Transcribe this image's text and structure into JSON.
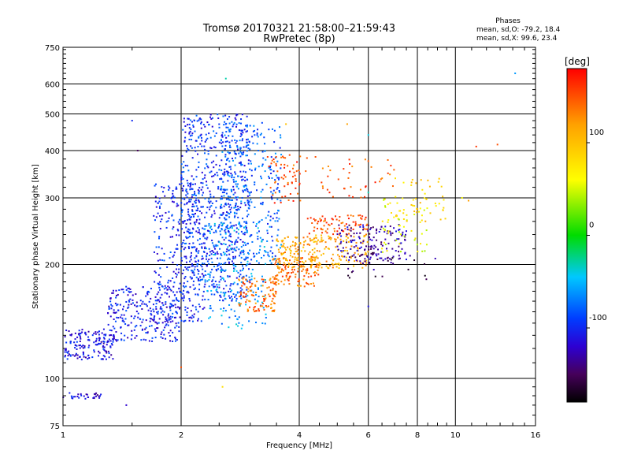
{
  "chart_data": {
    "type": "scatter",
    "title": "Tromsø 20170321 21:58:00–21:59:43",
    "subtitle": "RwPretec (8p)",
    "xlabel": "Frequency [MHz]",
    "ylabel": "Stationary phase Virtual Height [km]",
    "x_scale": "log",
    "y_scale": "log",
    "xlim": [
      1,
      16
    ],
    "ylim": [
      75,
      750
    ],
    "x_ticks": [
      1,
      2,
      4,
      6,
      8,
      10,
      16
    ],
    "y_ticks": [
      75,
      100,
      200,
      300,
      400,
      500,
      600,
      750
    ],
    "grid": true,
    "color_by": "phase",
    "colorbar": {
      "label": "[deg]",
      "ticks": [
        100,
        0,
        -100
      ],
      "range": [
        -180,
        180
      ]
    },
    "stats": {
      "title": "Phases",
      "o_line": "mean, sd,O: -79.2, 18.4",
      "x_line": "mean, sd,X:  99.6, 23.4"
    },
    "clusters": [
      {
        "x": [
          1.0,
          1.25
        ],
        "y": [
          88,
          92
        ],
        "phase": -115,
        "n": 30
      },
      {
        "x": [
          1.01,
          1.35
        ],
        "y": [
          112,
          135
        ],
        "phase": -110,
        "n": 160
      },
      {
        "x": [
          1.3,
          2.0
        ],
        "y": [
          125,
          175
        ],
        "phase": -105,
        "n": 260
      },
      {
        "x": [
          1.7,
          2.3
        ],
        "y": [
          140,
          330
        ],
        "phase": -100,
        "n": 320
      },
      {
        "x": [
          2.0,
          3.0
        ],
        "y": [
          160,
          500
        ],
        "phase": -95,
        "n": 700
      },
      {
        "x": [
          2.5,
          3.6
        ],
        "y": [
          200,
          480
        ],
        "phase": -80,
        "n": 320
      },
      {
        "x": [
          2.3,
          3.3
        ],
        "y": [
          135,
          260
        ],
        "phase": -60,
        "n": 180
      },
      {
        "x": [
          2.8,
          3.5
        ],
        "y": [
          150,
          185
        ],
        "phase": 140,
        "n": 110
      },
      {
        "x": [
          3.4,
          4.5
        ],
        "y": [
          175,
          210
        ],
        "phase": 140,
        "n": 110
      },
      {
        "x": [
          3.5,
          6.0
        ],
        "y": [
          195,
          240
        ],
        "phase": 115,
        "n": 240
      },
      {
        "x": [
          3.3,
          4.2
        ],
        "y": [
          290,
          390
        ],
        "phase": 150,
        "n": 60
      },
      {
        "x": [
          4.2,
          6.0
        ],
        "y": [
          240,
          270
        ],
        "phase": 150,
        "n": 80
      },
      {
        "x": [
          5.0,
          7.5
        ],
        "y": [
          205,
          255
        ],
        "phase": -130,
        "n": 150
      },
      {
        "x": [
          6.5,
          8.5
        ],
        "y": [
          215,
          300
        ],
        "phase": 60,
        "n": 60
      },
      {
        "x": [
          7.0,
          9.5
        ],
        "y": [
          260,
          340
        ],
        "phase": 90,
        "n": 45
      },
      {
        "x": [
          4.5,
          7.0
        ],
        "y": [
          300,
          380
        ],
        "phase": 150,
        "n": 40
      },
      {
        "x": [
          5.0,
          9.0
        ],
        "y": [
          180,
          215
        ],
        "phase": -150,
        "n": 30
      }
    ],
    "outliers": [
      {
        "x": 1.5,
        "y": 480,
        "phase": -100
      },
      {
        "x": 1.55,
        "y": 400,
        "phase": -150
      },
      {
        "x": 2.6,
        "y": 620,
        "phase": -30
      },
      {
        "x": 2.55,
        "y": 95,
        "phase": 80
      },
      {
        "x": 2.0,
        "y": 107,
        "phase": 150
      },
      {
        "x": 1.45,
        "y": 85,
        "phase": -120
      },
      {
        "x": 6.0,
        "y": 440,
        "phase": -40
      },
      {
        "x": 6.0,
        "y": 310,
        "phase": -30
      },
      {
        "x": 6.0,
        "y": 155,
        "phase": -110
      },
      {
        "x": 11.3,
        "y": 410,
        "phase": 160
      },
      {
        "x": 12.8,
        "y": 415,
        "phase": 150
      },
      {
        "x": 14.2,
        "y": 640,
        "phase": -60
      },
      {
        "x": 10.4,
        "y": 300,
        "phase": 60
      },
      {
        "x": 10.8,
        "y": 295,
        "phase": 120
      },
      {
        "x": 3.7,
        "y": 470,
        "phase": 100
      },
      {
        "x": 4.4,
        "y": 385,
        "phase": 150
      },
      {
        "x": 5.3,
        "y": 470,
        "phase": 120
      }
    ]
  }
}
